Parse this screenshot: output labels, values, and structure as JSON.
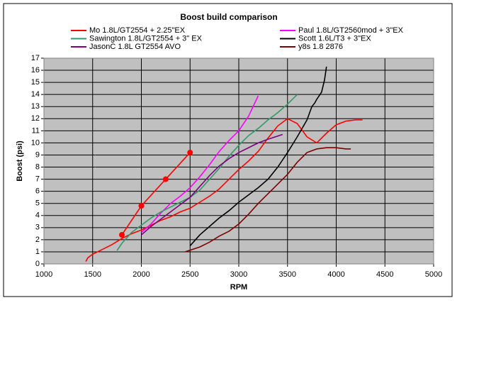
{
  "chart_data": {
    "type": "line",
    "title": "Boost build comparison",
    "x_label": "RPM",
    "y_label": "Boost (psi)",
    "xlim": [
      1000,
      5000
    ],
    "xticks": [
      1000,
      1500,
      2000,
      2500,
      3000,
      3500,
      4000,
      4500,
      5000
    ],
    "ylim": [
      0,
      17
    ],
    "yticks": [
      0,
      1,
      2,
      3,
      4,
      5,
      6,
      7,
      8,
      9,
      10,
      11,
      12,
      13,
      14,
      15,
      16,
      17
    ],
    "grid": true,
    "legend": "top",
    "series": [
      {
        "name": "Mo 1.8L/GT2554 + 2.25\"EX",
        "color": "#ff0000",
        "x": [
          1430,
          1450,
          1500,
          1600,
          1700,
          1800,
          1900,
          2000,
          2100,
          2200,
          2300,
          2400,
          2500,
          2600,
          2700,
          2800,
          2900,
          3000,
          3100,
          3200,
          3300,
          3400,
          3500,
          3600,
          3700,
          3800,
          3900,
          4000,
          4100,
          4200,
          4270
        ],
        "values": [
          0.2,
          0.5,
          0.8,
          1.2,
          1.6,
          2.1,
          2.5,
          2.8,
          3.2,
          3.6,
          3.9,
          4.3,
          4.6,
          5.1,
          5.6,
          6.2,
          7,
          7.8,
          8.5,
          9.3,
          10.4,
          11.4,
          12,
          11.6,
          10.5,
          10,
          10.8,
          11.5,
          11.8,
          11.9,
          11.9
        ]
      },
      {
        "name": "Paul 1.8L/GT2560mod + 3\"EX",
        "color": "#ff00ff",
        "x": [
          2000,
          2100,
          2200,
          2300,
          2400,
          2500,
          2600,
          2700,
          2800,
          2900,
          3000,
          3100,
          3200
        ],
        "values": [
          2.6,
          3.3,
          4.2,
          5,
          5.6,
          6.3,
          7.2,
          8.2,
          9.3,
          10.2,
          11,
          12.2,
          13.9
        ]
      },
      {
        "name": "Sawington 1.8L/GT2554 + 3\" EX",
        "color": "#339966",
        "x": [
          1750,
          1800,
          1900,
          2000,
          2100,
          2200,
          2300,
          2400,
          2500,
          2600,
          2700,
          2800,
          2900,
          3000,
          3100,
          3200,
          3300,
          3400,
          3500,
          3600
        ],
        "values": [
          1.1,
          1.7,
          2.6,
          3.2,
          3.8,
          4.3,
          4.7,
          5.1,
          5.5,
          6.1,
          7,
          7.9,
          8.9,
          9.8,
          10.6,
          11.2,
          11.9,
          12.5,
          13.2,
          14
        ]
      },
      {
        "name": "Scott 1.6L/T3 + 3\"EX",
        "color": "#000000",
        "x": [
          2500,
          2600,
          2700,
          2800,
          2900,
          3000,
          3100,
          3200,
          3300,
          3400,
          3500,
          3600,
          3700,
          3750,
          3780,
          3800,
          3850,
          3880,
          3900
        ],
        "values": [
          1.5,
          2.4,
          3.1,
          3.8,
          4.4,
          5.1,
          5.7,
          6.3,
          7,
          8,
          9.2,
          10.5,
          11.9,
          13,
          13.3,
          13.6,
          14.2,
          15.2,
          16.3
        ]
      },
      {
        "name": "JasonC 1.8L GT2554 AVO",
        "color": "#800080",
        "x": [
          2000,
          2100,
          2200,
          2300,
          2400,
          2500,
          2600,
          2700,
          2800,
          2900,
          3000,
          3100,
          3200,
          3300,
          3450
        ],
        "values": [
          2.4,
          3.1,
          3.7,
          4.3,
          4.9,
          5.5,
          6.4,
          7.3,
          8.1,
          8.7,
          9.2,
          9.6,
          10,
          10.3,
          10.7
        ]
      },
      {
        "name": "y8s 1.8 2876",
        "color": "#800000",
        "x": [
          2450,
          2600,
          2700,
          2800,
          2900,
          3000,
          3100,
          3200,
          3300,
          3400,
          3500,
          3600,
          3700,
          3800,
          3900,
          4000,
          4100,
          4150
        ],
        "values": [
          1.0,
          1.4,
          1.8,
          2.3,
          2.7,
          3.3,
          4.1,
          5,
          5.8,
          6.6,
          7.4,
          8.4,
          9.2,
          9.5,
          9.6,
          9.6,
          9.5,
          9.5
        ]
      },
      {
        "color": "#ff0000",
        "markers": true,
        "x": [
          1800,
          2000,
          2250,
          2500
        ],
        "values": [
          2.4,
          4.8,
          7,
          9.2
        ]
      }
    ]
  }
}
